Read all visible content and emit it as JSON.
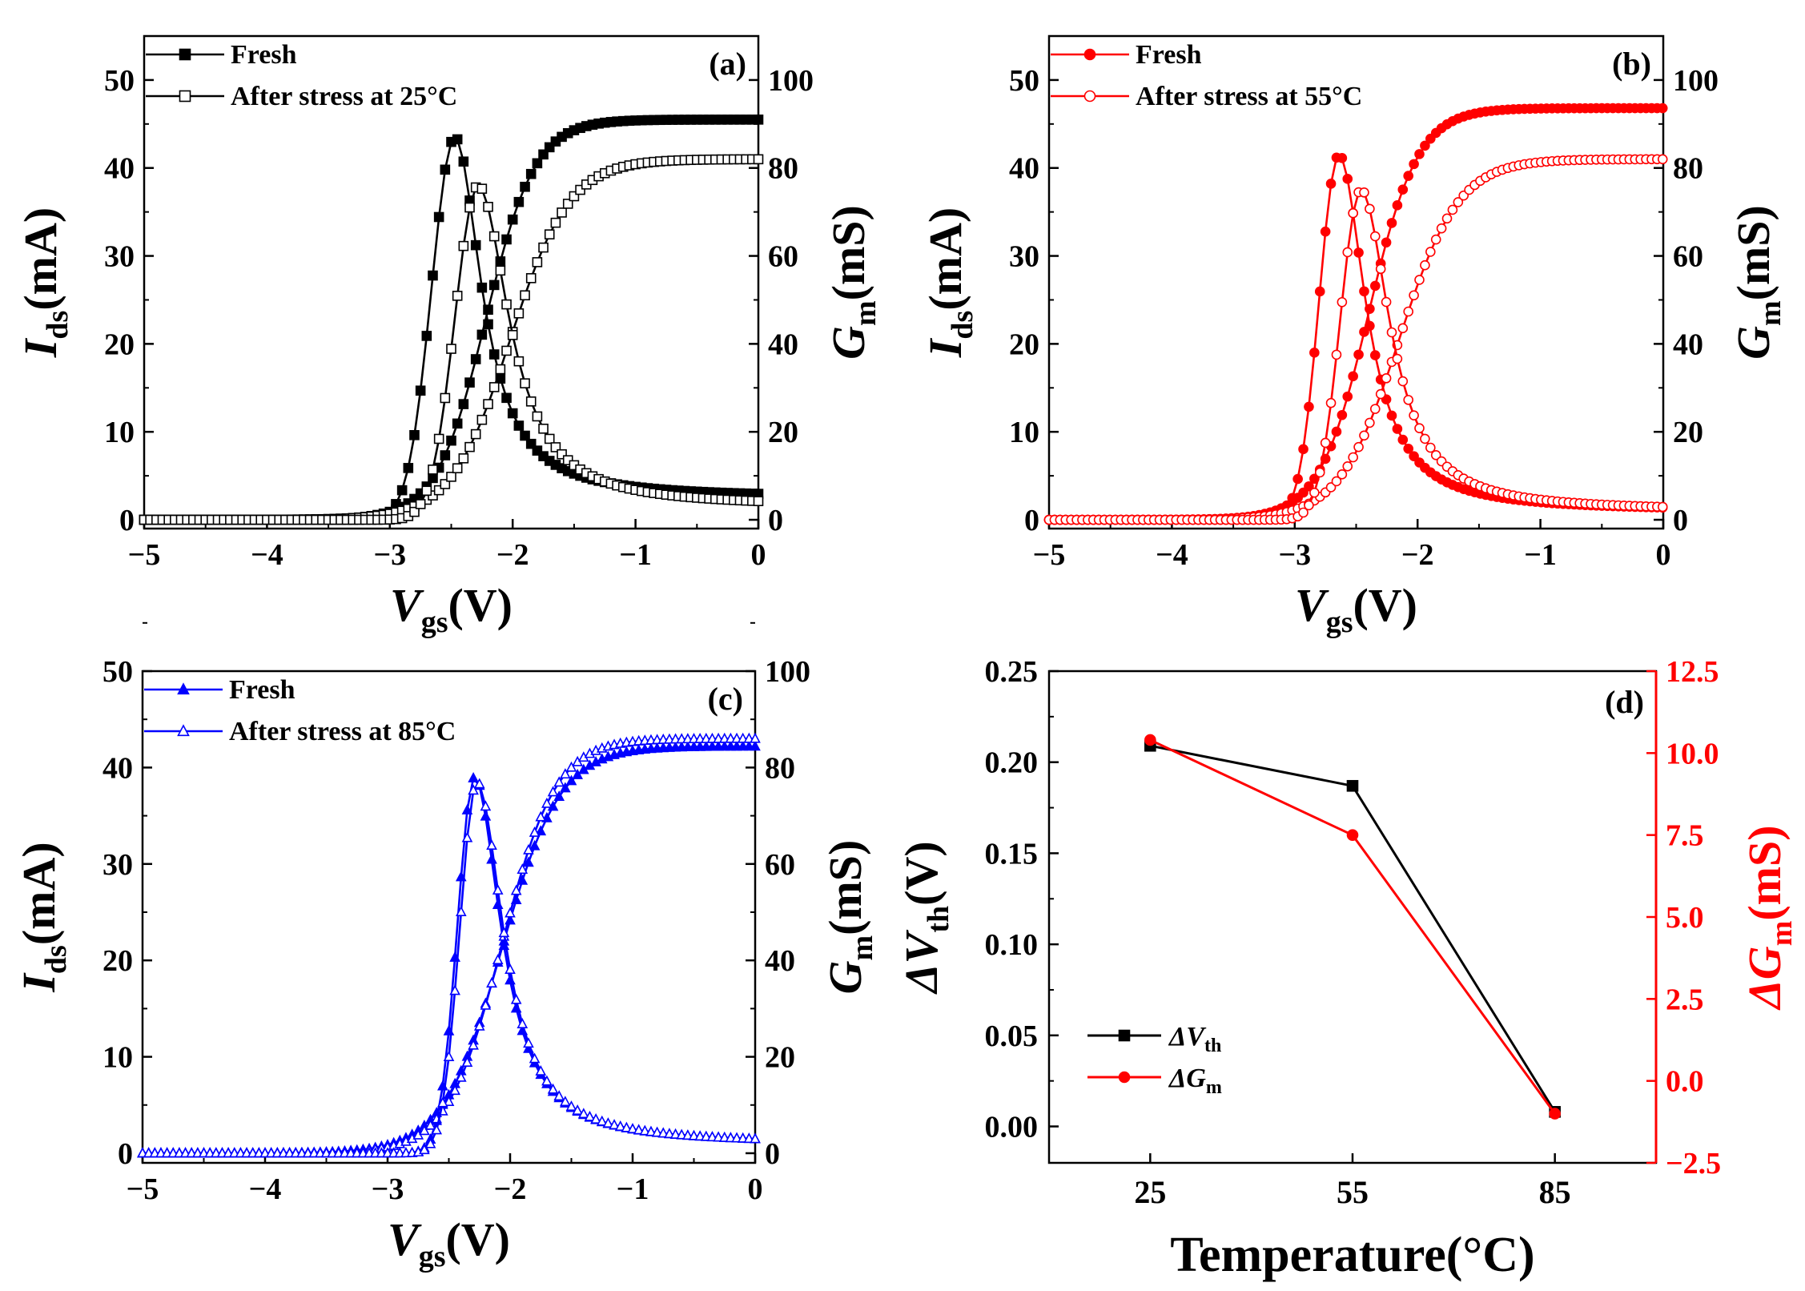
{
  "chart_data": [
    {
      "id": "a",
      "type": "line",
      "panel_label": "(a)",
      "color": "#000000",
      "marker": "square",
      "xlabel": {
        "main": "V",
        "sub": "gs",
        "unit": "(V)"
      },
      "ylabel_left": {
        "main": "I",
        "sub": "ds",
        "unit": "(mA)"
      },
      "ylabel_right": {
        "main": "G",
        "sub": "m",
        "unit": "(mS)"
      },
      "xlim": [
        -5,
        0
      ],
      "ylim_left": [
        -1,
        55
      ],
      "ylim_right": [
        -2,
        110
      ],
      "xticks": [
        "−5",
        "−4",
        "−3",
        "−2",
        "−1",
        "0"
      ],
      "yticks_left": [
        "0",
        "10",
        "20",
        "30",
        "40",
        "50"
      ],
      "yticks_right": [
        "0",
        "20",
        "40",
        "60",
        "80",
        "100"
      ],
      "legend": [
        {
          "label": "Fresh",
          "filled": true
        },
        {
          "label": "After stress at 25°C",
          "filled": false
        }
      ],
      "series": [
        {
          "name": "Fresh Ids",
          "axis": "left",
          "filled": true,
          "curve": "ids",
          "vth": -2.22,
          "w": 0.2,
          "imax": 45.5
        },
        {
          "name": "Fresh Gm",
          "axis": "right",
          "filled": true,
          "curve": "gm",
          "vpk": -2.47,
          "ws": 0.19,
          "wr": 0.26,
          "pk": 87,
          "tail": 5
        },
        {
          "name": "After stress Ids",
          "axis": "left",
          "filled": false,
          "curve": "ids",
          "vth": -2.02,
          "w": 0.24,
          "imax": 41
        },
        {
          "name": "After stress Gm",
          "axis": "right",
          "filled": false,
          "curve": "gm",
          "vpk": -2.28,
          "ws": 0.19,
          "wr": 0.3,
          "pk": 76,
          "tail": 3
        }
      ]
    },
    {
      "id": "b",
      "type": "line",
      "panel_label": "(b)",
      "color": "#ff0000",
      "marker": "circle",
      "xlabel": {
        "main": "V",
        "sub": "gs",
        "unit": "(V)"
      },
      "ylabel_left": {
        "main": "I",
        "sub": "ds",
        "unit": "(mA)"
      },
      "ylabel_right": {
        "main": "G",
        "sub": "m",
        "unit": "(mS)"
      },
      "xlim": [
        -5,
        0
      ],
      "ylim_left": [
        -1,
        55
      ],
      "ylim_right": [
        -2,
        110
      ],
      "xticks": [
        "−5",
        "−4",
        "−3",
        "−2",
        "−1",
        "0"
      ],
      "yticks_left": [
        "0",
        "10",
        "20",
        "30",
        "40",
        "50"
      ],
      "yticks_right": [
        "0",
        "20",
        "40",
        "60",
        "80",
        "100"
      ],
      "legend": [
        {
          "label": "Fresh",
          "filled": true
        },
        {
          "label": "After stress at 55°C",
          "filled": false
        }
      ],
      "series": [
        {
          "name": "Fresh Ids",
          "axis": "left",
          "filled": true,
          "curve": "ids",
          "vth": -2.4,
          "w": 0.2,
          "imax": 46.8
        },
        {
          "name": "Fresh Gm",
          "axis": "right",
          "filled": true,
          "curve": "gm",
          "vpk": -2.64,
          "ws": 0.16,
          "wr": 0.26,
          "pk": 83,
          "tail": 2
        },
        {
          "name": "After stress Ids",
          "axis": "left",
          "filled": false,
          "curve": "ids",
          "vth": -2.15,
          "w": 0.24,
          "imax": 41
        },
        {
          "name": "After stress Gm",
          "axis": "right",
          "filled": false,
          "curve": "gm",
          "vpk": -2.46,
          "ws": 0.17,
          "wr": 0.28,
          "pk": 75,
          "tail": 2
        }
      ]
    },
    {
      "id": "c",
      "type": "line",
      "panel_label": "(c)",
      "color": "#0000ff",
      "marker": "triangle",
      "xlabel": {
        "main": "V",
        "sub": "gs",
        "unit": "(V)"
      },
      "ylabel_left": {
        "main": "I",
        "sub": "ds",
        "unit": "(mA)"
      },
      "ylabel_right": {
        "main": "G",
        "sub": "m",
        "unit": "(mS)"
      },
      "xlim": [
        -5,
        0
      ],
      "ylim_left": [
        -1,
        50
      ],
      "ylim_right": [
        -2,
        100
      ],
      "xticks": [
        "−5",
        "−4",
        "−3",
        "−2",
        "−1",
        "0"
      ],
      "yticks_left": [
        "0",
        "10",
        "20",
        "30",
        "40",
        "50"
      ],
      "yticks_right": [
        "0",
        "20",
        "40",
        "60",
        "80",
        "100"
      ],
      "legend": [
        {
          "label": "Fresh",
          "filled": true
        },
        {
          "label": "After stress at 85°C",
          "filled": false
        }
      ],
      "series": [
        {
          "name": "Fresh Ids",
          "axis": "left",
          "filled": true,
          "curve": "ids",
          "vth": -2.07,
          "w": 0.24,
          "imax": 42.2
        },
        {
          "name": "Fresh Gm",
          "axis": "right",
          "filled": true,
          "curve": "gm",
          "vpk": -2.29,
          "ws": 0.14,
          "wr": 0.26,
          "pk": 78,
          "tail": 2
        },
        {
          "name": "After stress Ids",
          "axis": "left",
          "filled": false,
          "curve": "ids",
          "vth": -2.07,
          "w": 0.22,
          "imax": 43
        },
        {
          "name": "After stress Gm",
          "axis": "right",
          "filled": false,
          "curve": "gm",
          "vpk": -2.27,
          "ws": 0.14,
          "wr": 0.26,
          "pk": 77,
          "tail": 2
        }
      ]
    },
    {
      "id": "d",
      "type": "line",
      "panel_label": "(d)",
      "xlabel": "Temperature(°C)",
      "categories": [
        25,
        55,
        85
      ],
      "xlim": [
        10,
        100
      ],
      "ylim_left": [
        -0.02,
        0.25
      ],
      "ylim_right": [
        -2.5,
        12.5
      ],
      "xticks": [
        "25",
        "55",
        "85"
      ],
      "yticks_left": [
        "0.00",
        "0.05",
        "0.10",
        "0.15",
        "0.20",
        "0.25"
      ],
      "yticks_right": [
        "−2.5",
        "0.0",
        "2.5",
        "5.0",
        "7.5",
        "10.0",
        "12.5"
      ],
      "ylabel_left": {
        "pre": "Δ",
        "main": "V",
        "sub": "th",
        "unit": "(V)"
      },
      "ylabel_right": {
        "pre": "Δ",
        "main": "G",
        "sub": "m",
        "unit": "(mS)"
      },
      "series": [
        {
          "name": "ΔVth",
          "axis": "left",
          "color": "#000000",
          "marker": "square",
          "values": [
            0.209,
            0.187,
            0.008
          ],
          "legend": {
            "pre": "Δ",
            "main": "V",
            "sub": "th"
          }
        },
        {
          "name": "ΔGm",
          "axis": "right",
          "color": "#ff0000",
          "marker": "circle",
          "values": [
            10.4,
            7.5,
            -1.0
          ],
          "legend": {
            "pre": "Δ",
            "main": "G",
            "sub": "m"
          }
        }
      ]
    }
  ]
}
